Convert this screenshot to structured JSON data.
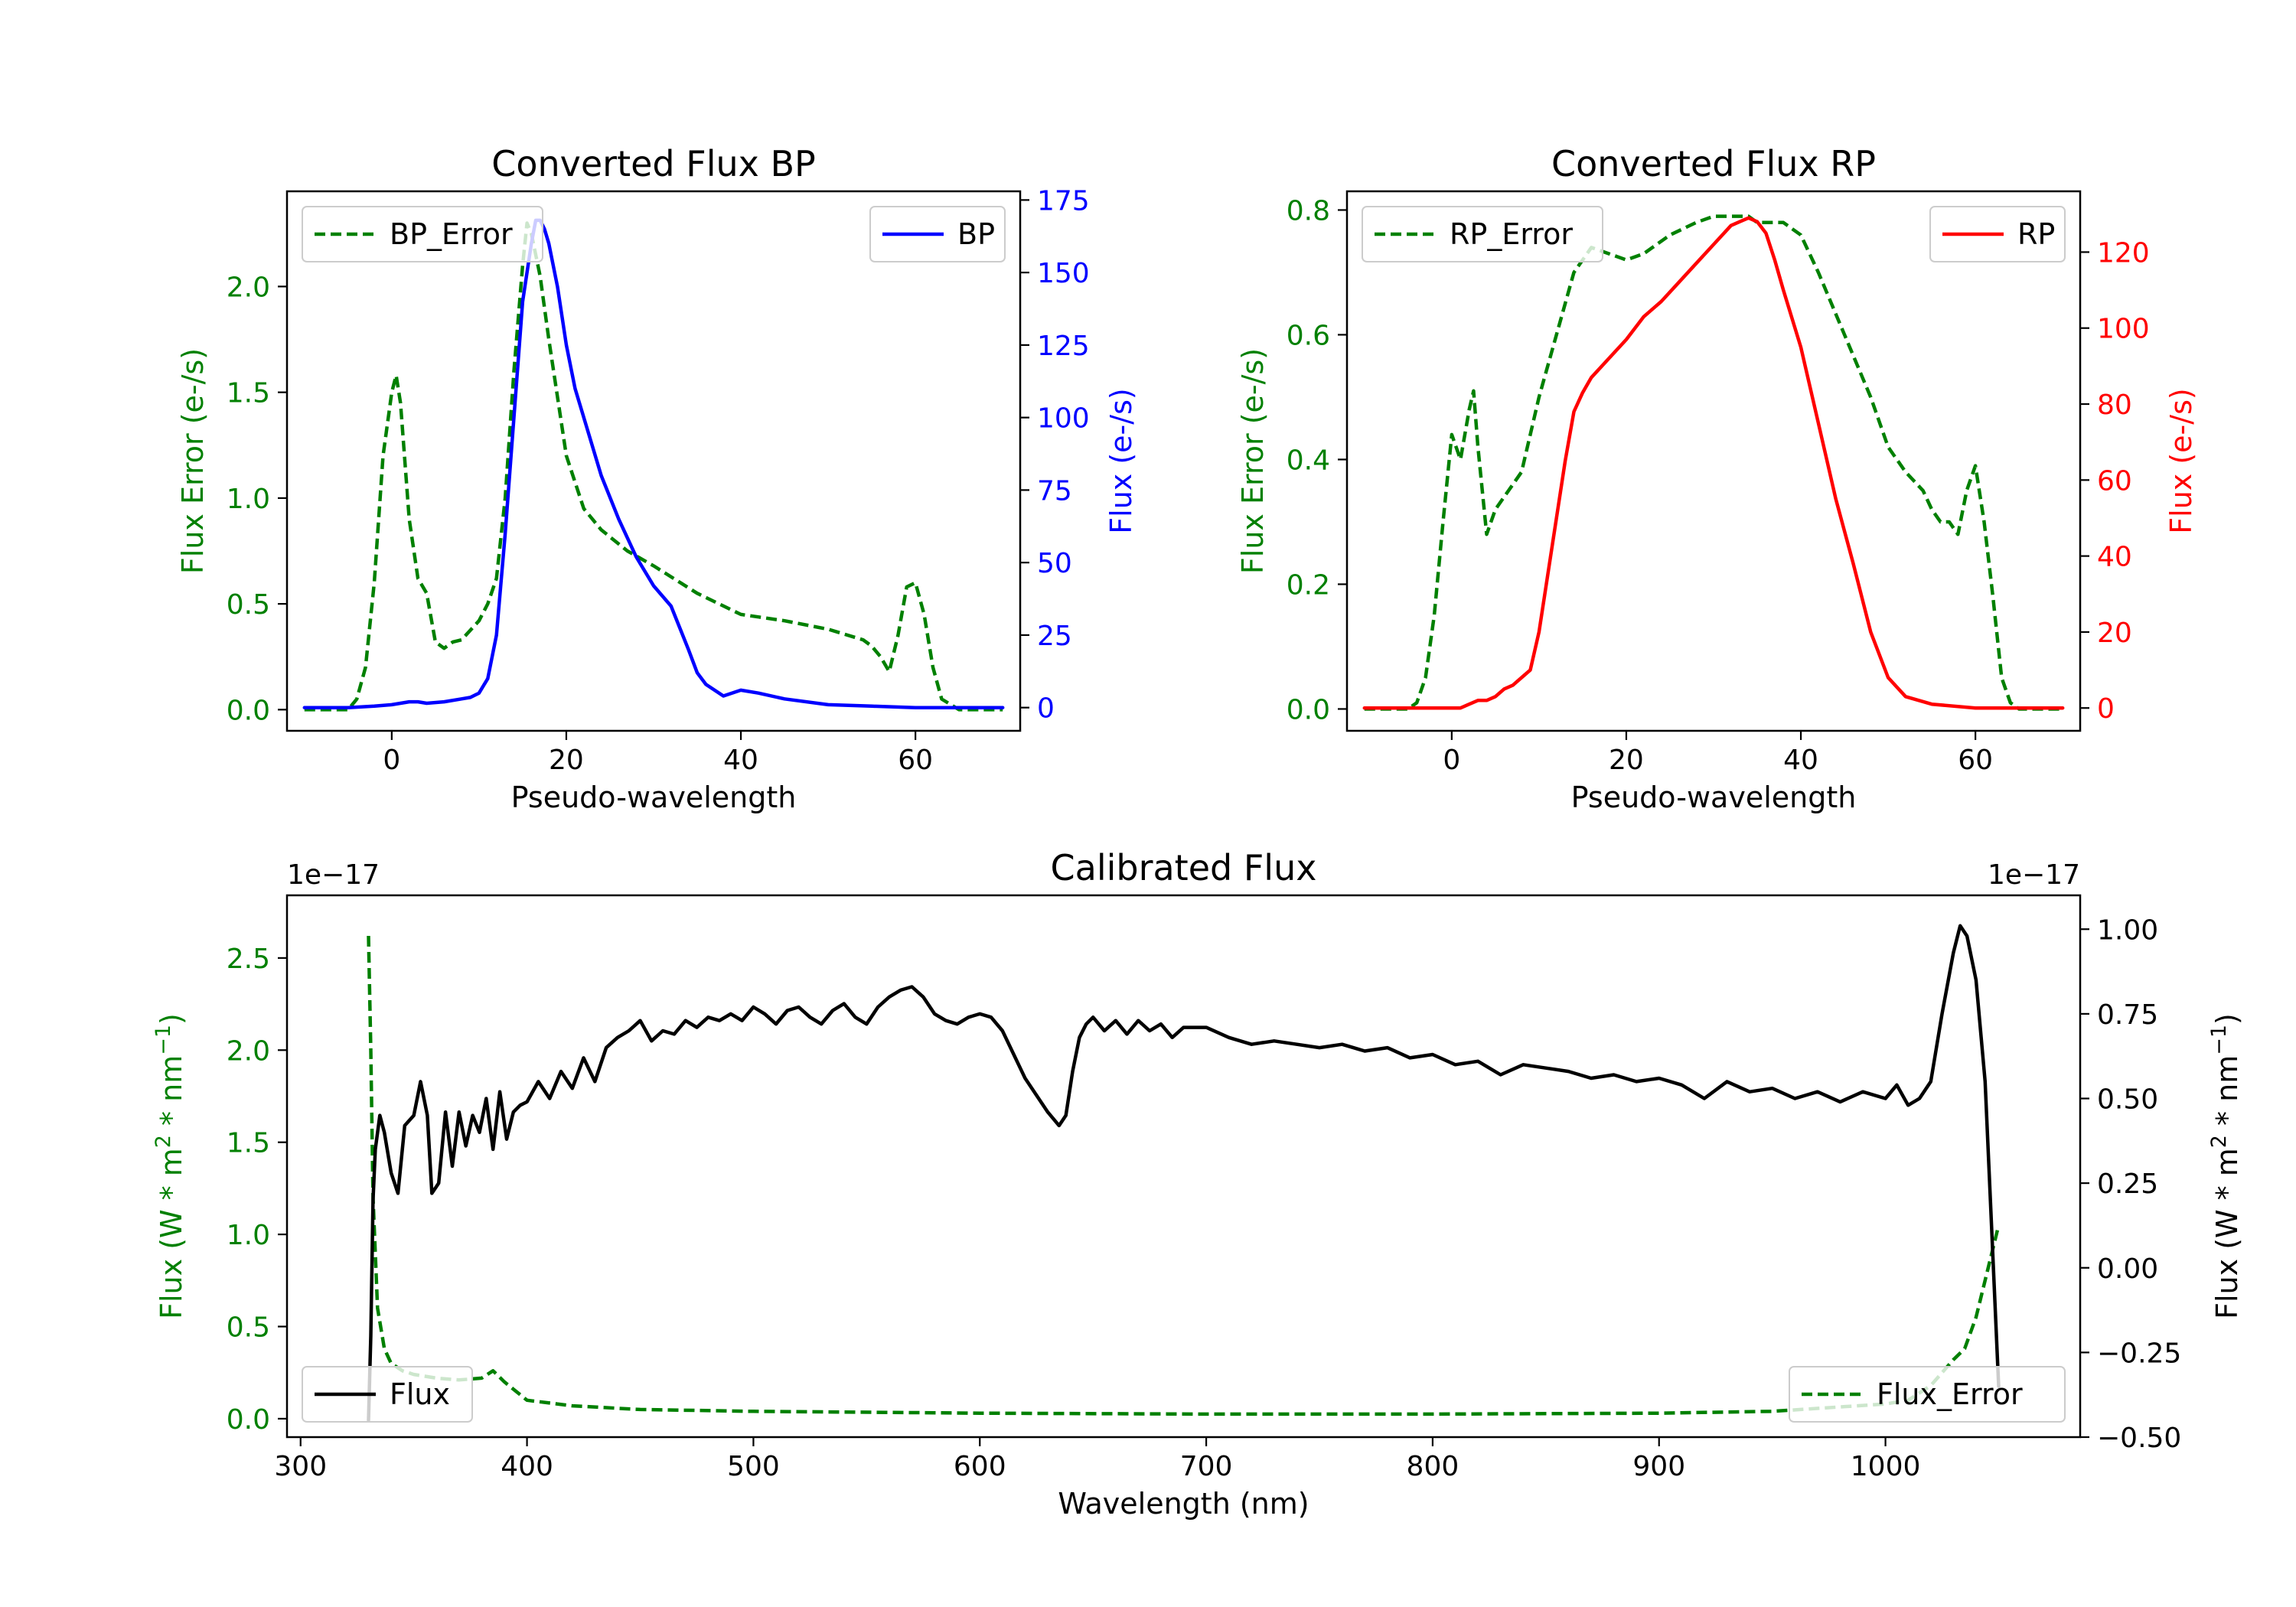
{
  "colors": {
    "error": "#008000",
    "bp": "#0000ff",
    "rp": "#ff0000",
    "flux": "#000000"
  },
  "chart_data": [
    {
      "type": "line",
      "title": "Converted Flux BP",
      "xlabel": "Pseudo-wavelength",
      "xlim": [
        -12,
        72
      ],
      "xticks": [
        0,
        20,
        40,
        60
      ],
      "left_axis": {
        "label": "Flux Error (e-/s)",
        "color": "#008000",
        "ylim": [
          -0.1,
          2.45
        ],
        "ticks": [
          0.0,
          0.5,
          1.0,
          1.5,
          2.0
        ],
        "tick_labels": [
          "0.0",
          "0.5",
          "1.0",
          "1.5",
          "2.0"
        ]
      },
      "right_axis": {
        "label": "Flux (e-/s)",
        "color": "#0000ff",
        "ylim": [
          -8,
          178
        ],
        "ticks": [
          0,
          25,
          50,
          75,
          100,
          125,
          150,
          175
        ],
        "tick_labels": [
          "0",
          "25",
          "50",
          "75",
          "100",
          "125",
          "150",
          "175"
        ]
      },
      "series": [
        {
          "name": "BP_Error",
          "axis": "left",
          "dashed": true,
          "color": "#008000",
          "x": [
            -10,
            -5,
            -4,
            -3,
            -2,
            -1,
            0,
            0.5,
            1,
            2,
            3,
            4,
            5,
            6,
            7,
            8,
            10,
            11,
            12,
            13,
            14,
            15,
            15.5,
            16,
            17,
            18,
            20,
            22,
            24,
            27,
            30,
            35,
            40,
            45,
            50,
            54,
            55,
            56,
            57,
            58,
            59,
            60,
            61,
            62,
            63,
            65,
            70
          ],
          "y": [
            0,
            0,
            0.05,
            0.2,
            0.6,
            1.2,
            1.5,
            1.58,
            1.45,
            0.9,
            0.62,
            0.55,
            0.32,
            0.29,
            0.32,
            0.33,
            0.42,
            0.5,
            0.62,
            1.0,
            1.6,
            2.1,
            2.3,
            2.25,
            2.05,
            1.75,
            1.2,
            0.95,
            0.85,
            0.75,
            0.68,
            0.55,
            0.45,
            0.42,
            0.38,
            0.33,
            0.3,
            0.25,
            0.18,
            0.35,
            0.58,
            0.6,
            0.45,
            0.2,
            0.05,
            0,
            0
          ]
        },
        {
          "name": "BP",
          "axis": "right",
          "dashed": false,
          "color": "#0000ff",
          "x": [
            -10,
            -5,
            -2,
            0,
            1,
            2,
            3,
            4,
            6,
            8,
            9,
            10,
            11,
            12,
            13,
            14,
            14.5,
            15,
            16,
            16.5,
            17,
            17.5,
            18,
            19,
            20,
            21,
            22,
            24,
            26,
            28,
            30,
            32,
            34,
            35,
            36,
            38,
            40,
            42,
            45,
            50,
            55,
            60,
            65,
            70
          ],
          "y": [
            0,
            0,
            0.5,
            1,
            1.5,
            2,
            2,
            1.5,
            2,
            3,
            3.5,
            5,
            10,
            25,
            60,
            100,
            120,
            140,
            160,
            168,
            168,
            165,
            160,
            145,
            125,
            110,
            100,
            80,
            65,
            52,
            42,
            35,
            20,
            12,
            8,
            4,
            6,
            5,
            3,
            1,
            0.5,
            0,
            0,
            0
          ]
        }
      ],
      "legends": [
        {
          "entries": [
            "BP_Error"
          ],
          "location": "upper left"
        },
        {
          "entries": [
            "BP"
          ],
          "location": "upper right"
        }
      ]
    },
    {
      "type": "line",
      "title": "Converted Flux RP",
      "xlabel": "Pseudo-wavelength",
      "xlim": [
        -12,
        72
      ],
      "xticks": [
        0,
        20,
        40,
        60
      ],
      "left_axis": {
        "label": "Flux Error (e-/s)",
        "color": "#008000",
        "ylim": [
          -0.035,
          0.83
        ],
        "ticks": [
          0.0,
          0.2,
          0.4,
          0.6,
          0.8
        ],
        "tick_labels": [
          "0.0",
          "0.2",
          "0.4",
          "0.6",
          "0.8"
        ]
      },
      "right_axis": {
        "label": "Flux (e-/s)",
        "color": "#ff0000",
        "ylim": [
          -6,
          136
        ],
        "ticks": [
          0,
          20,
          40,
          60,
          80,
          100,
          120
        ],
        "tick_labels": [
          "0",
          "20",
          "40",
          "60",
          "80",
          "100",
          "120"
        ]
      },
      "series": [
        {
          "name": "RP_Error",
          "axis": "left",
          "dashed": true,
          "color": "#008000",
          "x": [
            -10,
            -5,
            -4,
            -3,
            -2,
            -1,
            0,
            1,
            2,
            2.5,
            3,
            4,
            5,
            6,
            8,
            10,
            12,
            14,
            16,
            18,
            20,
            22,
            25,
            28,
            30,
            32,
            34,
            35,
            36,
            38,
            40,
            42,
            45,
            48,
            50,
            52,
            54,
            55,
            56,
            57,
            58,
            59,
            60,
            61,
            62,
            63,
            64,
            65,
            70
          ],
          "y": [
            0,
            0,
            0.01,
            0.05,
            0.15,
            0.3,
            0.44,
            0.4,
            0.48,
            0.51,
            0.42,
            0.28,
            0.32,
            0.34,
            0.38,
            0.5,
            0.6,
            0.7,
            0.74,
            0.73,
            0.72,
            0.73,
            0.76,
            0.78,
            0.79,
            0.79,
            0.79,
            0.78,
            0.78,
            0.78,
            0.76,
            0.7,
            0.6,
            0.5,
            0.42,
            0.38,
            0.35,
            0.32,
            0.3,
            0.3,
            0.28,
            0.35,
            0.39,
            0.3,
            0.18,
            0.05,
            0.01,
            0,
            0
          ]
        },
        {
          "name": "RP",
          "axis": "right",
          "dashed": false,
          "color": "#ff0000",
          "x": [
            -10,
            -5,
            -2,
            0,
            1,
            2,
            3,
            4,
            5,
            6,
            7,
            8,
            9,
            10,
            11,
            12,
            13,
            14,
            15,
            16,
            18,
            20,
            22,
            24,
            26,
            28,
            30,
            32,
            33,
            34,
            35,
            36,
            37,
            38,
            40,
            42,
            44,
            46,
            48,
            50,
            52,
            55,
            60,
            65,
            70
          ],
          "y": [
            0,
            0,
            0,
            0,
            0,
            1,
            2,
            2,
            3,
            5,
            6,
            8,
            10,
            20,
            35,
            50,
            65,
            78,
            83,
            87,
            92,
            97,
            103,
            107,
            112,
            117,
            122,
            127,
            128,
            129,
            128,
            125,
            118,
            110,
            95,
            75,
            55,
            38,
            20,
            8,
            3,
            1,
            0,
            0,
            0
          ]
        }
      ],
      "legends": [
        {
          "entries": [
            "RP_Error"
          ],
          "location": "upper left"
        },
        {
          "entries": [
            "RP"
          ],
          "location": "upper right"
        }
      ]
    },
    {
      "type": "line",
      "title": "Calibrated Flux",
      "xlabel": "Wavelength (nm)",
      "xlim": [
        294,
        1086
      ],
      "xticks": [
        300,
        400,
        500,
        600,
        700,
        800,
        900,
        1000
      ],
      "left_axis": {
        "label": "Flux (W * m",
        "label_sup1": "2",
        "label_mid": " * nm",
        "label_sup2": "−1",
        "label_end": ")",
        "offset_text": "1e−17",
        "color": "#008000",
        "ylim": [
          -0.1,
          2.84
        ],
        "ticks": [
          0.0,
          0.5,
          1.0,
          1.5,
          2.0,
          2.5
        ],
        "tick_labels": [
          "0.0",
          "0.5",
          "1.0",
          "1.5",
          "2.0",
          "2.5"
        ]
      },
      "right_axis": {
        "label": "Flux (W * m",
        "label_sup1": "2",
        "label_mid": " * nm",
        "label_sup2": "−1",
        "label_end": ")",
        "offset_text": "1e−17",
        "color": "#000000",
        "ylim": [
          -0.5,
          1.1
        ],
        "ticks": [
          -0.5,
          -0.25,
          0.0,
          0.25,
          0.5,
          0.75,
          1.0
        ],
        "tick_labels": [
          "−0.50",
          "−0.25",
          "0.00",
          "0.25",
          "0.50",
          "0.75",
          "1.00"
        ]
      },
      "series": [
        {
          "name": "Flux_Error",
          "axis": "left",
          "dashed": true,
          "color": "#008000",
          "x": [
            330,
            331,
            332,
            334,
            337,
            340,
            345,
            350,
            360,
            370,
            380,
            385,
            390,
            400,
            420,
            450,
            500,
            600,
            700,
            800,
            900,
            950,
            1000,
            1010,
            1020,
            1030,
            1035,
            1040,
            1045,
            1050
          ],
          "y": [
            2.62,
            2.0,
            1.2,
            0.6,
            0.38,
            0.3,
            0.26,
            0.24,
            0.22,
            0.21,
            0.22,
            0.26,
            0.2,
            0.1,
            0.07,
            0.05,
            0.04,
            0.03,
            0.025,
            0.025,
            0.03,
            0.04,
            0.08,
            0.1,
            0.18,
            0.32,
            0.38,
            0.55,
            0.8,
            1.05
          ]
        },
        {
          "name": "Flux",
          "axis": "right",
          "dashed": false,
          "color": "#000000",
          "x": [
            330,
            331,
            332,
            333,
            335,
            337,
            340,
            343,
            346,
            350,
            353,
            356,
            358,
            361,
            364,
            367,
            370,
            373,
            376,
            379,
            382,
            385,
            388,
            391,
            394,
            397,
            400,
            405,
            410,
            415,
            420,
            425,
            430,
            435,
            440,
            445,
            450,
            455,
            460,
            465,
            470,
            475,
            480,
            485,
            490,
            495,
            500,
            505,
            510,
            515,
            520,
            525,
            530,
            535,
            540,
            545,
            550,
            555,
            560,
            565,
            570,
            575,
            580,
            585,
            590,
            595,
            600,
            605,
            610,
            615,
            620,
            625,
            630,
            635,
            638,
            641,
            644,
            647,
            650,
            655,
            660,
            665,
            670,
            675,
            680,
            685,
            690,
            695,
            700,
            710,
            720,
            730,
            740,
            750,
            760,
            770,
            780,
            790,
            800,
            810,
            820,
            830,
            840,
            850,
            860,
            870,
            880,
            890,
            900,
            910,
            920,
            930,
            940,
            950,
            960,
            970,
            980,
            990,
            1000,
            1005,
            1010,
            1015,
            1020,
            1025,
            1030,
            1033,
            1036,
            1040,
            1044,
            1048,
            1050
          ],
          "y": [
            -0.45,
            -0.2,
            0.2,
            0.35,
            0.45,
            0.4,
            0.28,
            0.22,
            0.42,
            0.45,
            0.55,
            0.45,
            0.22,
            0.25,
            0.46,
            0.3,
            0.46,
            0.36,
            0.45,
            0.4,
            0.5,
            0.35,
            0.52,
            0.38,
            0.46,
            0.48,
            0.49,
            0.55,
            0.5,
            0.58,
            0.53,
            0.62,
            0.55,
            0.65,
            0.68,
            0.7,
            0.73,
            0.67,
            0.7,
            0.69,
            0.73,
            0.71,
            0.74,
            0.73,
            0.75,
            0.73,
            0.77,
            0.75,
            0.72,
            0.76,
            0.77,
            0.74,
            0.72,
            0.76,
            0.78,
            0.74,
            0.72,
            0.77,
            0.8,
            0.82,
            0.83,
            0.8,
            0.75,
            0.73,
            0.72,
            0.74,
            0.75,
            0.74,
            0.7,
            0.63,
            0.56,
            0.51,
            0.46,
            0.42,
            0.45,
            0.58,
            0.68,
            0.72,
            0.74,
            0.7,
            0.73,
            0.69,
            0.73,
            0.7,
            0.72,
            0.68,
            0.71,
            0.71,
            0.71,
            0.68,
            0.66,
            0.67,
            0.66,
            0.65,
            0.66,
            0.64,
            0.65,
            0.62,
            0.63,
            0.6,
            0.61,
            0.57,
            0.6,
            0.59,
            0.58,
            0.56,
            0.57,
            0.55,
            0.56,
            0.54,
            0.5,
            0.55,
            0.52,
            0.53,
            0.5,
            0.52,
            0.49,
            0.52,
            0.5,
            0.54,
            0.48,
            0.5,
            0.55,
            0.75,
            0.93,
            1.01,
            0.98,
            0.85,
            0.55,
            -0.05,
            -0.35
          ]
        }
      ],
      "legends": [
        {
          "entries": [
            "Flux"
          ],
          "location": "lower left"
        },
        {
          "entries": [
            "Flux_Error"
          ],
          "location": "lower right"
        }
      ]
    }
  ]
}
